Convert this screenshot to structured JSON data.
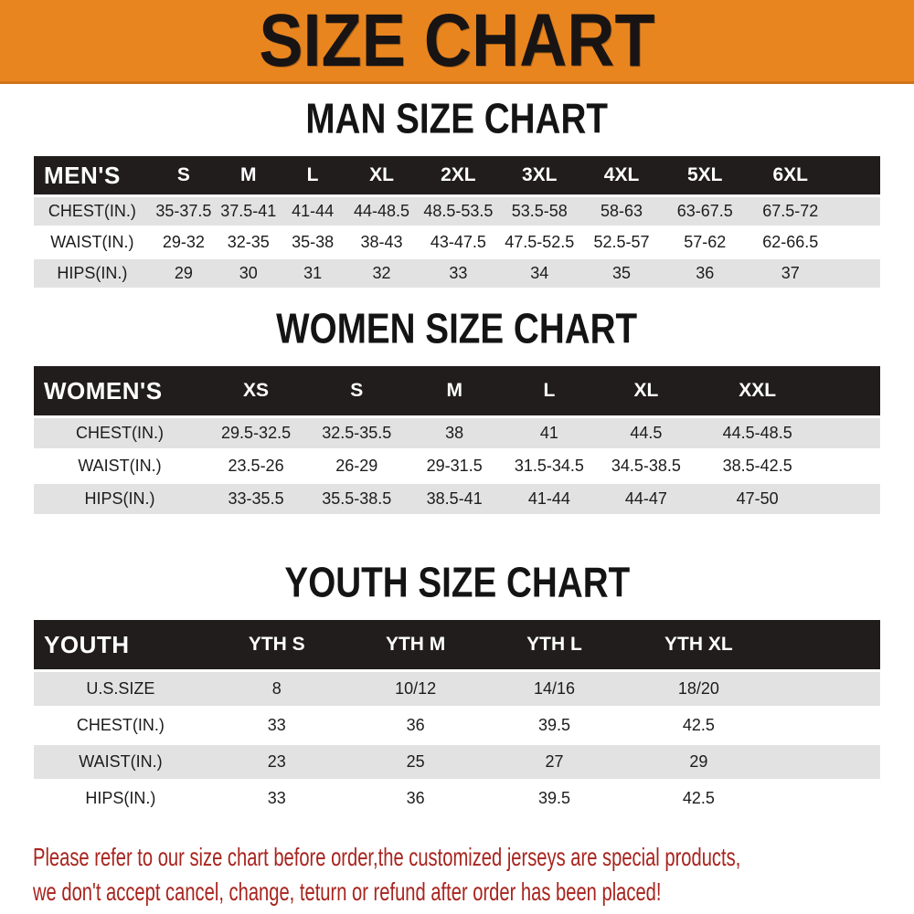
{
  "banner": {
    "title": "SIZE CHART"
  },
  "colors": {
    "banner_bg": "#E9851F",
    "header_bar": "#211D1D",
    "row_stripe": "#E3E2E2",
    "disclaimer_text": "#A8241E"
  },
  "sections": {
    "men_heading": "MAN SIZE CHART",
    "women_heading": "WOMEN SIZE CHART",
    "youth_heading": "YOUTH SIZE CHART"
  },
  "tables": {
    "men": {
      "label": "MEN'S",
      "sizes": [
        "S",
        "M",
        "L",
        "XL",
        "2XL",
        "3XL",
        "4XL",
        "5XL",
        "6XL"
      ],
      "rows": [
        {
          "label": "CHEST(IN.)",
          "values": [
            "35-37.5",
            "37.5-41",
            "41-44",
            "44-48.5",
            "48.5-53.5",
            "53.5-58",
            "58-63",
            "63-67.5",
            "67.5-72"
          ]
        },
        {
          "label": "WAIST(IN.)",
          "values": [
            "29-32",
            "32-35",
            "35-38",
            "38-43",
            "43-47.5",
            "47.5-52.5",
            "52.5-57",
            "57-62",
            "62-66.5"
          ]
        },
        {
          "label": "HIPS(IN.)",
          "values": [
            "29",
            "30",
            "31",
            "32",
            "33",
            "34",
            "35",
            "36",
            "37"
          ]
        }
      ]
    },
    "women": {
      "label": "WOMEN'S",
      "sizes": [
        "XS",
        "S",
        "M",
        "L",
        "XL",
        "XXL"
      ],
      "rows": [
        {
          "label": "CHEST(IN.)",
          "values": [
            "29.5-32.5",
            "32.5-35.5",
            "38",
            "41",
            "44.5",
            "44.5-48.5"
          ]
        },
        {
          "label": "WAIST(IN.)",
          "values": [
            "23.5-26",
            "26-29",
            "29-31.5",
            "31.5-34.5",
            "34.5-38.5",
            "38.5-42.5"
          ]
        },
        {
          "label": "HIPS(IN.)",
          "values": [
            "33-35.5",
            "35.5-38.5",
            "38.5-41",
            "41-44",
            "44-47",
            "47-50"
          ]
        }
      ]
    },
    "youth": {
      "label": "YOUTH",
      "sizes": [
        "YTH S",
        "YTH M",
        "YTH L",
        "YTH XL"
      ],
      "rows": [
        {
          "label": "U.S.SIZE",
          "values": [
            "8",
            "10/12",
            "14/16",
            "18/20"
          ]
        },
        {
          "label": "CHEST(IN.)",
          "values": [
            "33",
            "36",
            "39.5",
            "42.5"
          ]
        },
        {
          "label": "WAIST(IN.)",
          "values": [
            "23",
            "25",
            "27",
            "29"
          ]
        },
        {
          "label": "HIPS(IN.)",
          "values": [
            "33",
            "36",
            "39.5",
            "42.5"
          ]
        }
      ]
    }
  },
  "disclaimer": {
    "line1": "Please refer to our size chart before order,the customized jerseys are special products,",
    "line2": "we don't accept cancel, change, teturn or refund after order has been placed!"
  }
}
